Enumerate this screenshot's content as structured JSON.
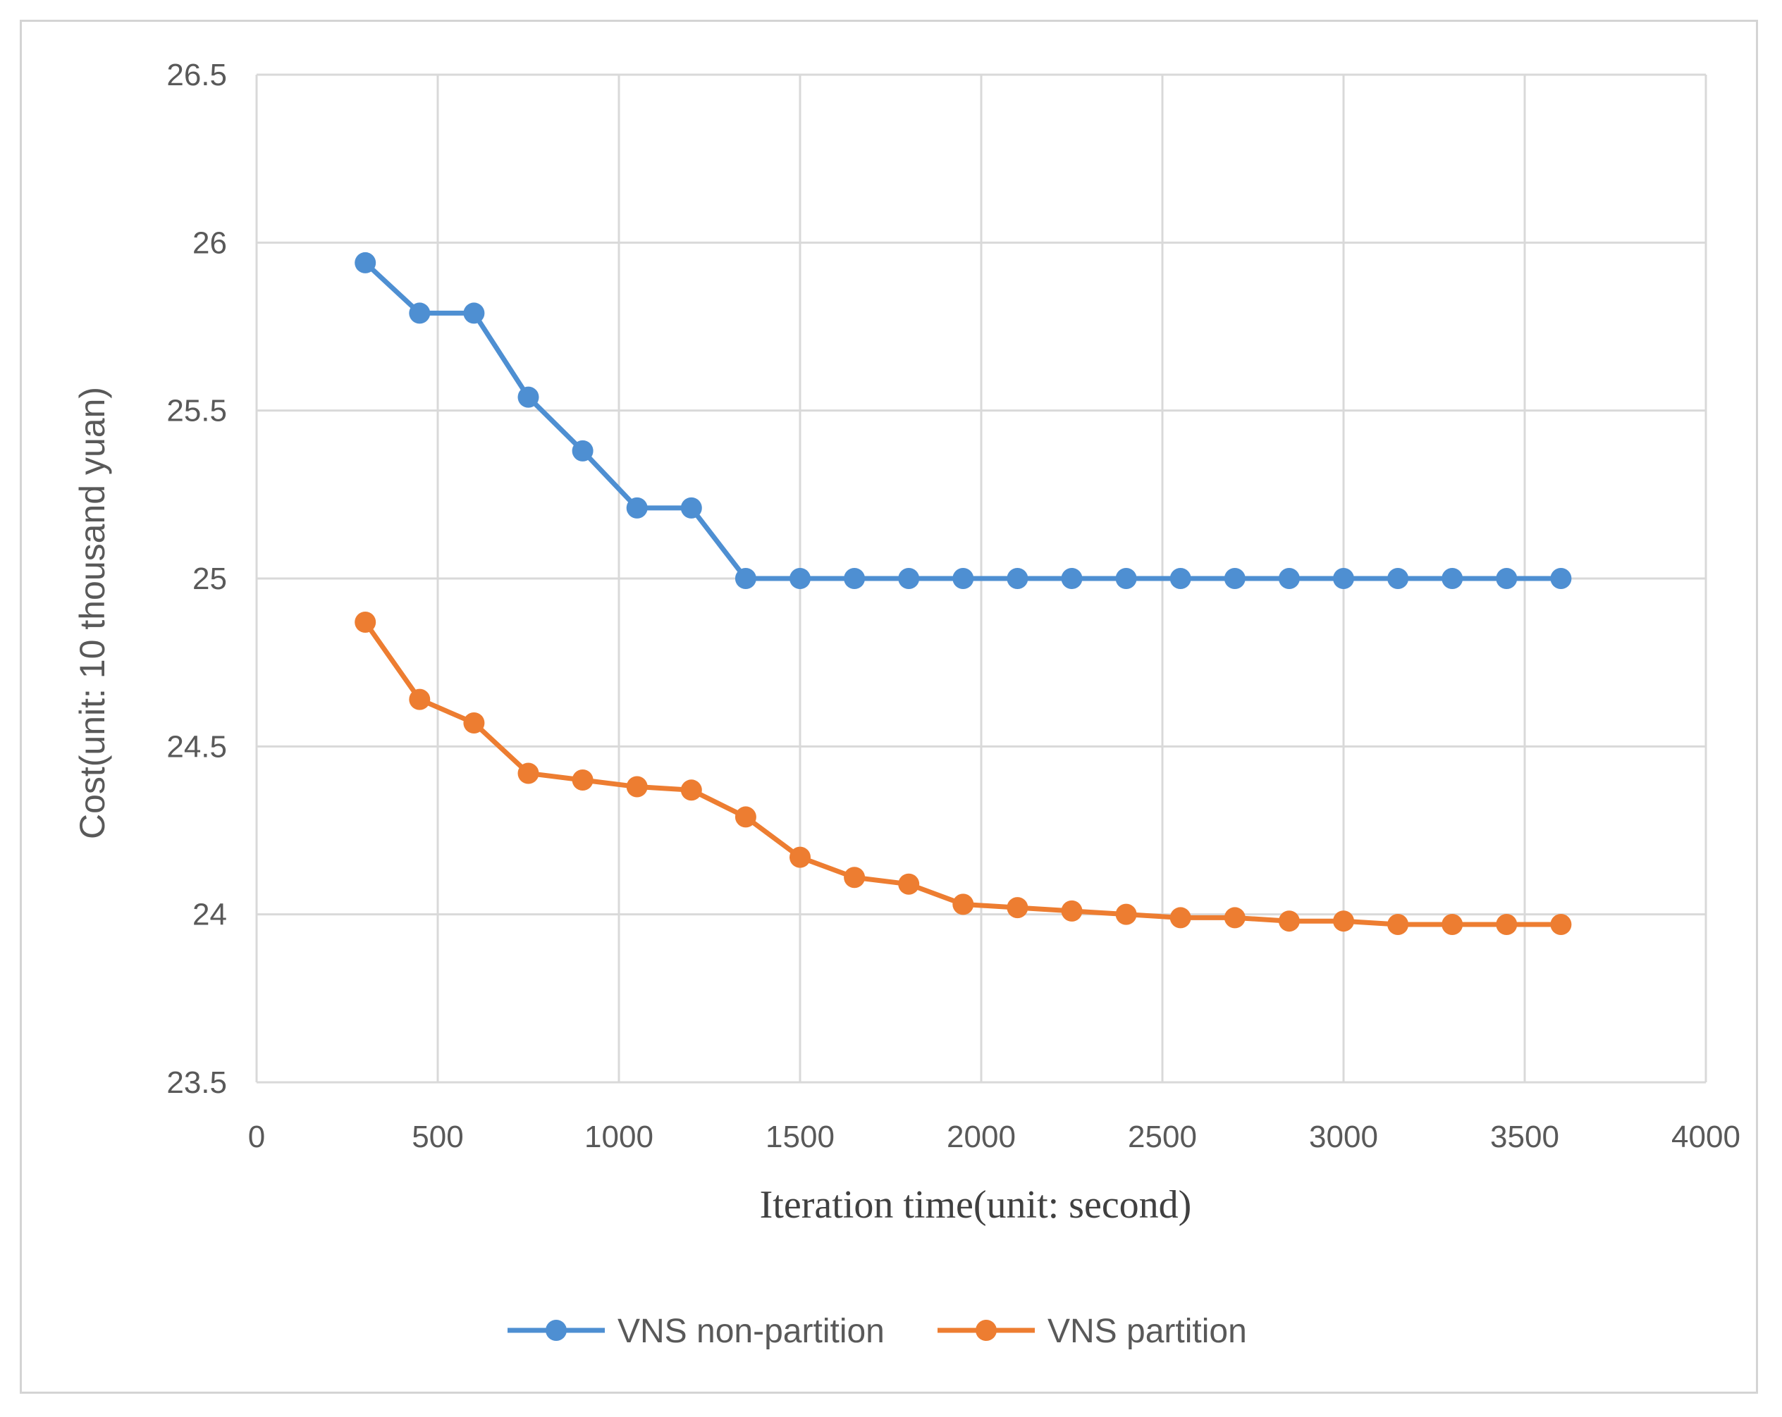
{
  "chart_data": {
    "type": "line",
    "title": "",
    "xlabel": "Iteration time(unit: second)",
    "ylabel": "Cost(unit: 10 thousand yuan)",
    "xlim": [
      0,
      4000
    ],
    "ylim": [
      23.5,
      26.5
    ],
    "xticks": [
      "0",
      "500",
      "1000",
      "1500",
      "2000",
      "2500",
      "3000",
      "3500",
      "4000"
    ],
    "yticks": [
      "23.5",
      "24",
      "24.5",
      "25",
      "25.5",
      "26",
      "26.5"
    ],
    "grid": true,
    "legend_position": "bottom",
    "x": [
      300,
      450,
      600,
      750,
      900,
      1050,
      1200,
      1350,
      1500,
      1650,
      1800,
      1950,
      2100,
      2250,
      2400,
      2550,
      2700,
      2850,
      3000,
      3150,
      3300,
      3450,
      3600
    ],
    "series": [
      {
        "name": "VNS non-partition",
        "color": "#4e8fd2",
        "values": [
          25.94,
          25.79,
          25.79,
          25.54,
          25.38,
          25.21,
          25.21,
          25.0,
          25.0,
          25.0,
          25.0,
          25.0,
          25.0,
          25.0,
          25.0,
          25.0,
          25.0,
          25.0,
          25.0,
          25.0,
          25.0,
          25.0,
          25.0
        ]
      },
      {
        "name": "VNS partition",
        "color": "#ed7d31",
        "values": [
          24.87,
          24.64,
          24.57,
          24.42,
          24.4,
          24.38,
          24.37,
          24.29,
          24.17,
          24.11,
          24.09,
          24.03,
          24.02,
          24.01,
          24.0,
          23.99,
          23.99,
          23.98,
          23.98,
          23.97,
          23.97,
          23.97,
          23.97
        ]
      }
    ]
  }
}
